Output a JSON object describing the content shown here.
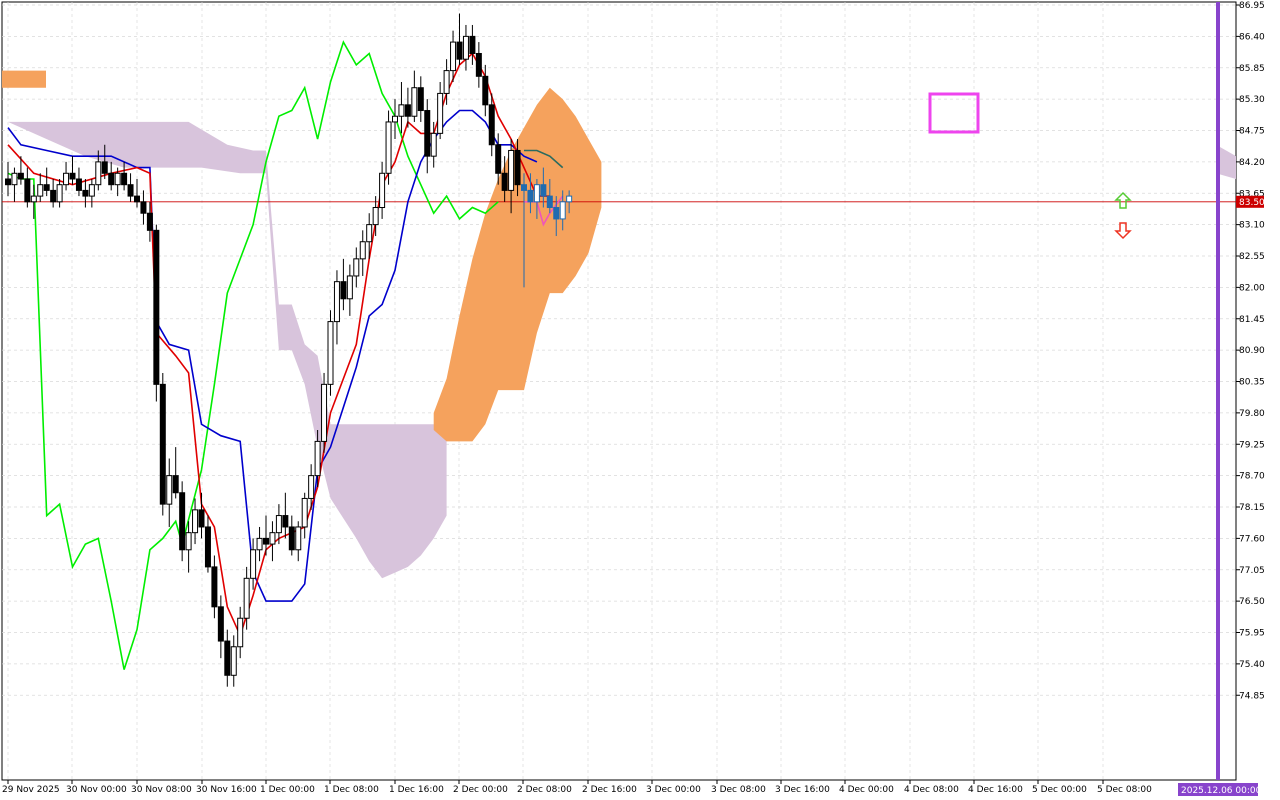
{
  "chart_data": {
    "type": "candlestick",
    "ylim": [
      74.3,
      86.95
    ],
    "y_ticks": [
      "86.95",
      "86.40",
      "85.85",
      "85.30",
      "84.75",
      "84.20",
      "83.65",
      "83.10",
      "82.55",
      "82.00",
      "81.45",
      "80.90",
      "80.35",
      "79.80",
      "79.25",
      "78.70",
      "78.15",
      "77.60",
      "77.05",
      "76.50",
      "75.95",
      "75.40",
      "74.85"
    ],
    "x_ticks": [
      "29 Nov 2025",
      "30 Nov 00:00",
      "30 Nov 08:00",
      "30 Nov 16:00",
      "1 Dec 00:00",
      "1 Dec 08:00",
      "1 Dec 16:00",
      "2 Dec 00:00",
      "2 Dec 08:00",
      "2 Dec 16:00",
      "3 Dec 00:00",
      "3 Dec 08:00",
      "3 Dec 16:00",
      "4 Dec 00:00",
      "4 Dec 08:00",
      "4 Dec 16:00",
      "5 Dec 00:00",
      "5 Dec 08:00"
    ],
    "current_price": "83.50",
    "future_time_label": "2025.12.06 00:00",
    "grid": true,
    "colors": {
      "tenkan": "#e00000",
      "kijun": "#0000cc",
      "chikou": "#00ee00",
      "kumo_bearish": "#d8c4dc",
      "kumo_bullish": "#f5a25d",
      "price_line": "#cc0000",
      "vertical_marker": "#8844cc",
      "highlight_box": "#ee44ee",
      "up_arrow": "#55cc33",
      "down_arrow": "#ee3322",
      "recent_candles": "#1f6bb0",
      "pink_line": "#ee55bb",
      "teal_line": "#2b6b5f"
    },
    "candles": [
      [
        83.9,
        84.2,
        83.6,
        83.8
      ],
      [
        83.8,
        84.1,
        83.5,
        84.0
      ],
      [
        84.0,
        84.3,
        83.8,
        83.9
      ],
      [
        83.9,
        84.1,
        83.4,
        83.5
      ],
      [
        83.5,
        83.8,
        83.2,
        83.6
      ],
      [
        83.6,
        84.0,
        83.5,
        83.8
      ],
      [
        83.8,
        84.1,
        83.6,
        83.7
      ],
      [
        83.7,
        83.9,
        83.4,
        83.5
      ],
      [
        83.5,
        83.9,
        83.4,
        83.8
      ],
      [
        83.8,
        84.2,
        83.7,
        84.0
      ],
      [
        84.0,
        84.3,
        83.8,
        83.9
      ],
      [
        83.9,
        84.1,
        83.6,
        83.7
      ],
      [
        83.7,
        83.9,
        83.4,
        83.6
      ],
      [
        83.6,
        83.9,
        83.4,
        83.8
      ],
      [
        83.8,
        84.4,
        83.7,
        84.2
      ],
      [
        84.2,
        84.5,
        83.9,
        84.0
      ],
      [
        84.0,
        84.2,
        83.7,
        83.8
      ],
      [
        83.8,
        84.1,
        83.6,
        84.0
      ],
      [
        84.0,
        84.2,
        83.7,
        83.8
      ],
      [
        83.8,
        84.0,
        83.5,
        83.6
      ],
      [
        83.6,
        83.9,
        83.4,
        83.5
      ],
      [
        83.5,
        83.7,
        83.1,
        83.3
      ],
      [
        83.3,
        83.5,
        82.8,
        83.0
      ],
      [
        83.0,
        83.1,
        80.0,
        80.3
      ],
      [
        80.3,
        80.5,
        78.0,
        78.2
      ],
      [
        78.2,
        79.0,
        77.8,
        78.7
      ],
      [
        78.7,
        79.2,
        78.3,
        78.4
      ],
      [
        78.4,
        78.6,
        77.2,
        77.4
      ],
      [
        77.4,
        77.9,
        77.0,
        77.7
      ],
      [
        77.7,
        78.3,
        77.5,
        78.1
      ],
      [
        78.1,
        78.4,
        77.6,
        77.8
      ],
      [
        77.8,
        78.0,
        77.0,
        77.1
      ],
      [
        77.1,
        77.3,
        76.2,
        76.4
      ],
      [
        76.4,
        76.6,
        75.5,
        75.8
      ],
      [
        75.8,
        76.0,
        75.0,
        75.2
      ],
      [
        75.2,
        75.9,
        75.0,
        75.7
      ],
      [
        75.7,
        76.4,
        75.5,
        76.2
      ],
      [
        76.2,
        77.1,
        76.0,
        76.9
      ],
      [
        76.9,
        77.6,
        76.7,
        77.4
      ],
      [
        77.4,
        77.8,
        77.2,
        77.6
      ],
      [
        77.6,
        78.0,
        77.3,
        77.5
      ],
      [
        77.5,
        77.9,
        77.2,
        77.7
      ],
      [
        77.7,
        78.2,
        77.5,
        78.0
      ],
      [
        78.0,
        78.4,
        77.6,
        77.8
      ],
      [
        77.8,
        78.0,
        77.3,
        77.4
      ],
      [
        77.4,
        77.9,
        77.2,
        77.8
      ],
      [
        77.8,
        78.4,
        77.6,
        78.3
      ],
      [
        78.3,
        78.9,
        78.1,
        78.7
      ],
      [
        78.7,
        79.5,
        78.5,
        79.3
      ],
      [
        79.3,
        80.5,
        79.1,
        80.3
      ],
      [
        80.3,
        81.6,
        80.1,
        81.4
      ],
      [
        81.4,
        82.3,
        81.0,
        82.1
      ],
      [
        82.1,
        82.5,
        81.6,
        81.8
      ],
      [
        81.8,
        82.4,
        81.5,
        82.2
      ],
      [
        82.2,
        82.7,
        82.0,
        82.5
      ],
      [
        82.5,
        83.0,
        82.2,
        82.8
      ],
      [
        82.8,
        83.3,
        82.5,
        83.1
      ],
      [
        83.1,
        83.6,
        82.9,
        83.4
      ],
      [
        83.4,
        84.2,
        83.2,
        84.0
      ],
      [
        84.0,
        85.1,
        83.8,
        84.9
      ],
      [
        84.9,
        85.3,
        84.6,
        85.0
      ],
      [
        85.0,
        85.6,
        84.7,
        85.2
      ],
      [
        85.2,
        85.5,
        84.8,
        85.0
      ],
      [
        85.0,
        85.8,
        84.9,
        85.5
      ],
      [
        85.5,
        85.7,
        84.9,
        85.1
      ],
      [
        85.1,
        85.3,
        84.0,
        84.3
      ],
      [
        84.3,
        84.9,
        84.1,
        84.7
      ],
      [
        84.7,
        85.6,
        84.6,
        85.4
      ],
      [
        85.4,
        86.0,
        85.2,
        85.8
      ],
      [
        85.8,
        86.5,
        85.6,
        86.3
      ],
      [
        86.3,
        86.8,
        85.9,
        86.0
      ],
      [
        86.0,
        86.6,
        85.8,
        86.4
      ],
      [
        86.4,
        86.6,
        85.9,
        86.1
      ],
      [
        86.1,
        86.3,
        85.5,
        85.7
      ],
      [
        85.7,
        85.9,
        85.0,
        85.2
      ],
      [
        85.2,
        85.4,
        84.3,
        84.5
      ],
      [
        84.5,
        84.7,
        83.8,
        84.0
      ],
      [
        84.0,
        84.3,
        83.5,
        83.7
      ],
      [
        83.7,
        84.6,
        83.3,
        84.4
      ],
      [
        84.4,
        84.6,
        83.6,
        83.8
      ],
      [
        83.8,
        84.0,
        82.0,
        83.7
      ],
      [
        83.7,
        84.0,
        83.3,
        83.5
      ],
      [
        83.5,
        83.9,
        83.2,
        83.8
      ],
      [
        83.8,
        84.1,
        83.4,
        83.6
      ],
      [
        83.6,
        83.9,
        83.3,
        83.4
      ],
      [
        83.4,
        83.6,
        82.9,
        83.2
      ],
      [
        83.2,
        83.7,
        83.0,
        83.5
      ],
      [
        83.5,
        83.7,
        83.3,
        83.6
      ]
    ],
    "tenkan": [
      [
        0,
        84.5
      ],
      [
        4,
        84.0
      ],
      [
        10,
        83.8
      ],
      [
        16,
        84.0
      ],
      [
        20,
        84.1
      ],
      [
        22,
        84.0
      ],
      [
        23,
        81.2
      ],
      [
        26,
        80.8
      ],
      [
        28,
        80.5
      ],
      [
        30,
        78.2
      ],
      [
        32,
        77.8
      ],
      [
        34,
        76.4
      ],
      [
        36,
        75.9
      ],
      [
        38,
        76.6
      ],
      [
        40,
        77.4
      ],
      [
        42,
        77.6
      ],
      [
        46,
        77.8
      ],
      [
        48,
        78.5
      ],
      [
        50,
        79.8
      ],
      [
        52,
        80.4
      ],
      [
        54,
        81.0
      ],
      [
        56,
        82.5
      ],
      [
        58,
        83.8
      ],
      [
        60,
        84.2
      ],
      [
        62,
        84.9
      ],
      [
        64,
        84.7
      ],
      [
        66,
        84.7
      ],
      [
        68,
        85.4
      ],
      [
        70,
        85.9
      ],
      [
        72,
        86.1
      ],
      [
        74,
        85.7
      ],
      [
        76,
        85.0
      ],
      [
        78,
        84.6
      ],
      [
        80,
        84.1
      ],
      [
        82,
        83.6
      ],
      [
        84,
        83.6
      ]
    ],
    "kijun": [
      [
        0,
        84.8
      ],
      [
        2,
        84.5
      ],
      [
        6,
        84.4
      ],
      [
        10,
        84.3
      ],
      [
        16,
        84.3
      ],
      [
        20,
        84.1
      ],
      [
        22,
        84.1
      ],
      [
        23,
        81.4
      ],
      [
        25,
        81.0
      ],
      [
        28,
        80.9
      ],
      [
        30,
        79.6
      ],
      [
        33,
        79.4
      ],
      [
        36,
        79.3
      ],
      [
        38,
        77.0
      ],
      [
        40,
        76.5
      ],
      [
        44,
        76.5
      ],
      [
        46,
        76.8
      ],
      [
        48,
        78.8
      ],
      [
        50,
        79.2
      ],
      [
        52,
        79.9
      ],
      [
        54,
        80.6
      ],
      [
        56,
        81.5
      ],
      [
        58,
        81.7
      ],
      [
        60,
        82.3
      ],
      [
        62,
        83.5
      ],
      [
        64,
        84.2
      ],
      [
        66,
        84.6
      ],
      [
        68,
        84.9
      ],
      [
        70,
        85.1
      ],
      [
        72,
        85.1
      ],
      [
        74,
        84.9
      ],
      [
        76,
        84.5
      ],
      [
        78,
        84.5
      ],
      [
        80,
        84.3
      ],
      [
        82,
        84.2
      ]
    ],
    "chikou": [
      [
        0,
        84.0
      ],
      [
        2,
        83.9
      ],
      [
        4,
        83.9
      ],
      [
        6,
        78.0
      ],
      [
        8,
        78.2
      ],
      [
        10,
        77.1
      ],
      [
        12,
        77.5
      ],
      [
        14,
        77.6
      ],
      [
        16,
        76.5
      ],
      [
        18,
        75.3
      ],
      [
        20,
        76.0
      ],
      [
        22,
        77.4
      ],
      [
        24,
        77.6
      ],
      [
        26,
        77.9
      ],
      [
        27,
        77.5
      ],
      [
        30,
        78.8
      ],
      [
        32,
        80.3
      ],
      [
        34,
        81.9
      ],
      [
        36,
        82.5
      ],
      [
        38,
        83.1
      ],
      [
        40,
        84.2
      ],
      [
        42,
        85.0
      ],
      [
        44,
        85.1
      ],
      [
        46,
        85.5
      ],
      [
        48,
        84.6
      ],
      [
        50,
        85.6
      ],
      [
        52,
        86.3
      ],
      [
        54,
        85.9
      ],
      [
        56,
        86.1
      ],
      [
        58,
        85.4
      ],
      [
        60,
        85.0
      ],
      [
        62,
        84.3
      ],
      [
        64,
        83.8
      ],
      [
        66,
        83.3
      ],
      [
        68,
        83.6
      ],
      [
        70,
        83.2
      ],
      [
        72,
        83.4
      ],
      [
        74,
        83.3
      ],
      [
        76,
        83.5
      ]
    ],
    "kumo_bearish": {
      "top": [
        [
          0,
          84.9
        ],
        [
          6,
          84.9
        ],
        [
          12,
          84.9
        ],
        [
          18,
          84.9
        ],
        [
          24,
          84.9
        ],
        [
          28,
          84.9
        ],
        [
          34,
          84.5
        ],
        [
          38,
          84.4
        ],
        [
          40,
          84.4
        ],
        [
          42,
          81.7
        ],
        [
          44,
          81.7
        ],
        [
          46,
          81.0
        ],
        [
          48,
          80.8
        ],
        [
          50,
          79.6
        ],
        [
          56,
          79.6
        ],
        [
          62,
          79.6
        ],
        [
          66,
          79.6
        ],
        [
          68,
          79.6
        ]
      ],
      "bottom": [
        [
          0,
          84.9
        ],
        [
          6,
          84.6
        ],
        [
          12,
          84.3
        ],
        [
          18,
          84.1
        ],
        [
          24,
          84.1
        ],
        [
          30,
          84.1
        ],
        [
          36,
          84.0
        ],
        [
          40,
          84.0
        ],
        [
          42,
          80.9
        ],
        [
          44,
          80.9
        ],
        [
          46,
          80.3
        ],
        [
          48,
          79.2
        ],
        [
          50,
          78.3
        ],
        [
          54,
          77.6
        ],
        [
          56,
          77.2
        ],
        [
          58,
          76.9
        ],
        [
          60,
          77.0
        ],
        [
          62,
          77.1
        ],
        [
          64,
          77.3
        ],
        [
          66,
          77.6
        ],
        [
          68,
          78.0
        ]
      ]
    },
    "kumo_bullish": {
      "top": [
        [
          66,
          79.8
        ],
        [
          68,
          80.4
        ],
        [
          70,
          81.5
        ],
        [
          72,
          82.5
        ],
        [
          74,
          83.3
        ],
        [
          76,
          83.9
        ],
        [
          78,
          84.4
        ],
        [
          80,
          84.8
        ],
        [
          82,
          85.2
        ],
        [
          84,
          85.5
        ],
        [
          86,
          85.3
        ],
        [
          88,
          85.0
        ],
        [
          90,
          84.6
        ],
        [
          92,
          84.2
        ]
      ],
      "bottom": [
        [
          66,
          79.5
        ],
        [
          68,
          79.3
        ],
        [
          70,
          79.3
        ],
        [
          72,
          79.3
        ],
        [
          74,
          79.6
        ],
        [
          76,
          80.2
        ],
        [
          78,
          80.2
        ],
        [
          80,
          80.2
        ],
        [
          82,
          81.2
        ],
        [
          84,
          81.9
        ],
        [
          86,
          81.9
        ],
        [
          88,
          82.2
        ],
        [
          90,
          82.6
        ],
        [
          92,
          83.4
        ]
      ]
    },
    "teal_line": [
      [
        80,
        84.4
      ],
      [
        82,
        84.4
      ],
      [
        84,
        84.3
      ],
      [
        86,
        84.1
      ]
    ],
    "pink_line": [
      [
        80,
        83.5
      ],
      [
        82,
        83.5
      ],
      [
        83,
        83.1
      ],
      [
        84,
        83.3
      ],
      [
        86,
        83.6
      ]
    ]
  }
}
